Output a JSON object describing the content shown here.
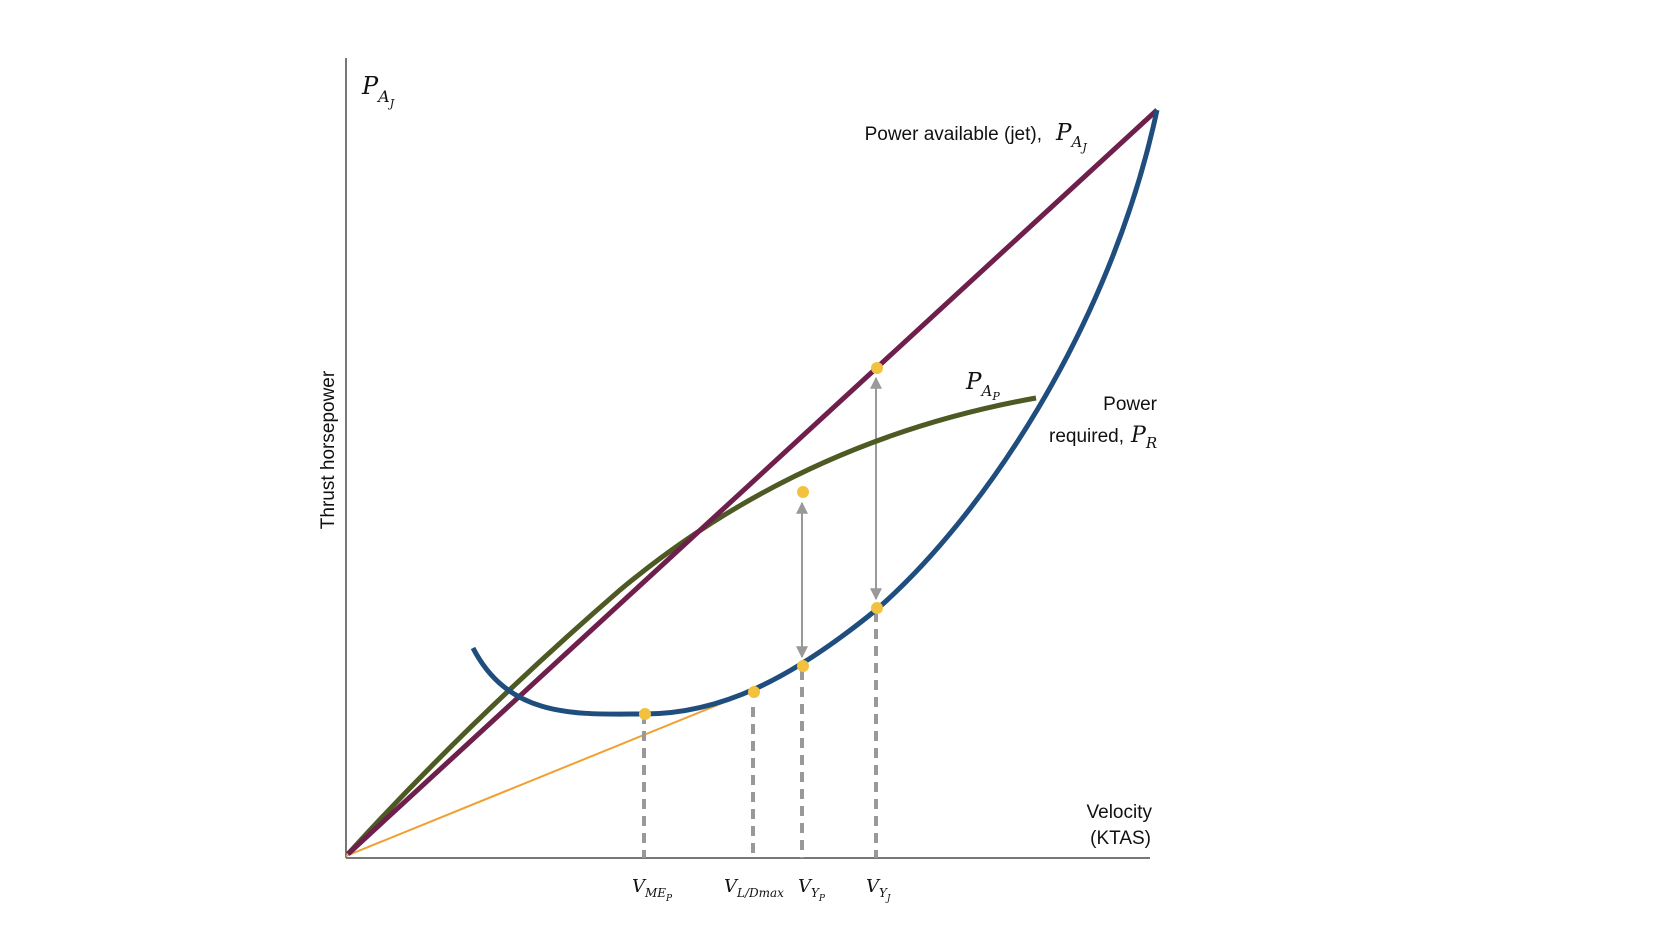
{
  "diagram": {
    "y_axis_label": "Thrust horsepower",
    "y_axis_symbol": {
      "base": "P",
      "sub": "A",
      "subsub": "J"
    },
    "x_axis_label": {
      "line1": "Velocity",
      "line2": "(KTAS)"
    },
    "curves": {
      "power_available_jet": {
        "label": "Power available (jet),",
        "symbol": {
          "base": "P",
          "sub": "A",
          "subsub": "J"
        },
        "color": "#6e1f4b"
      },
      "power_available_prop": {
        "symbol": {
          "base": "P",
          "sub": "A",
          "subsub": "P"
        },
        "color": "#4d5a23"
      },
      "power_required": {
        "line1": "Power",
        "line2": "required,",
        "symbol": {
          "base": "P",
          "sub": "R"
        },
        "color": "#1f4e7e"
      },
      "tangent_line": {
        "color": "#f0a030"
      }
    },
    "marker_color": "#f2c13e",
    "guide_color": "#999999",
    "x_ticks": [
      {
        "id": "vme",
        "base": "V",
        "sub": "ME",
        "subsub": "P"
      },
      {
        "id": "vld",
        "base": "V",
        "sub": "L/Dmax"
      },
      {
        "id": "vyp",
        "base": "V",
        "sub": "Y",
        "subsub": "P"
      },
      {
        "id": "vyj",
        "base": "V",
        "sub": "Y",
        "subsub": "J"
      }
    ]
  }
}
